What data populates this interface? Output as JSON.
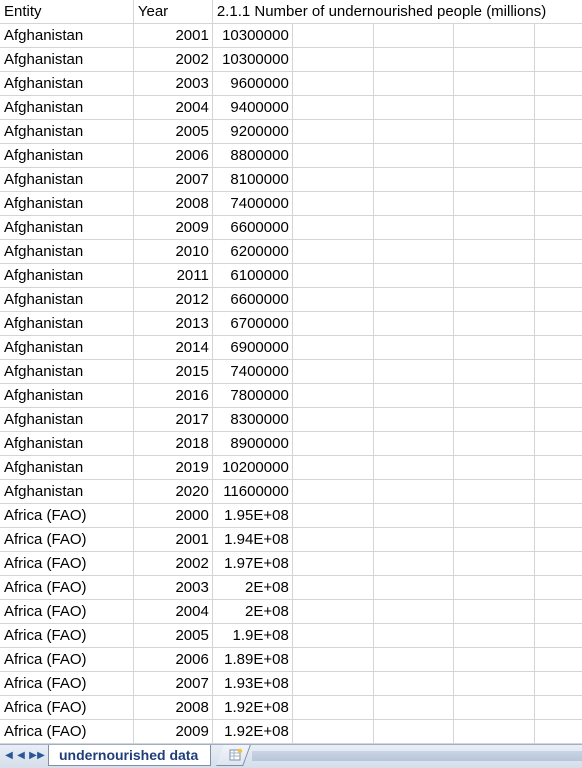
{
  "columns": {
    "entity": "Entity",
    "year": "Year",
    "metric": "2.1.1 Number of undernourished people (millions)"
  },
  "rows": [
    {
      "entity": "Afghanistan",
      "year": "2001",
      "value": "10300000"
    },
    {
      "entity": "Afghanistan",
      "year": "2002",
      "value": "10300000"
    },
    {
      "entity": "Afghanistan",
      "year": "2003",
      "value": "9600000"
    },
    {
      "entity": "Afghanistan",
      "year": "2004",
      "value": "9400000"
    },
    {
      "entity": "Afghanistan",
      "year": "2005",
      "value": "9200000"
    },
    {
      "entity": "Afghanistan",
      "year": "2006",
      "value": "8800000"
    },
    {
      "entity": "Afghanistan",
      "year": "2007",
      "value": "8100000"
    },
    {
      "entity": "Afghanistan",
      "year": "2008",
      "value": "7400000"
    },
    {
      "entity": "Afghanistan",
      "year": "2009",
      "value": "6600000"
    },
    {
      "entity": "Afghanistan",
      "year": "2010",
      "value": "6200000"
    },
    {
      "entity": "Afghanistan",
      "year": "2011",
      "value": "6100000"
    },
    {
      "entity": "Afghanistan",
      "year": "2012",
      "value": "6600000"
    },
    {
      "entity": "Afghanistan",
      "year": "2013",
      "value": "6700000"
    },
    {
      "entity": "Afghanistan",
      "year": "2014",
      "value": "6900000"
    },
    {
      "entity": "Afghanistan",
      "year": "2015",
      "value": "7400000"
    },
    {
      "entity": "Afghanistan",
      "year": "2016",
      "value": "7800000"
    },
    {
      "entity": "Afghanistan",
      "year": "2017",
      "value": "8300000"
    },
    {
      "entity": "Afghanistan",
      "year": "2018",
      "value": "8900000"
    },
    {
      "entity": "Afghanistan",
      "year": "2019",
      "value": "10200000"
    },
    {
      "entity": "Afghanistan",
      "year": "2020",
      "value": "11600000"
    },
    {
      "entity": "Africa (FAO)",
      "year": "2000",
      "value": "1.95E+08"
    },
    {
      "entity": "Africa (FAO)",
      "year": "2001",
      "value": "1.94E+08"
    },
    {
      "entity": "Africa (FAO)",
      "year": "2002",
      "value": "1.97E+08"
    },
    {
      "entity": "Africa (FAO)",
      "year": "2003",
      "value": "2E+08"
    },
    {
      "entity": "Africa (FAO)",
      "year": "2004",
      "value": "2E+08"
    },
    {
      "entity": "Africa (FAO)",
      "year": "2005",
      "value": "1.9E+08"
    },
    {
      "entity": "Africa (FAO)",
      "year": "2006",
      "value": "1.89E+08"
    },
    {
      "entity": "Africa (FAO)",
      "year": "2007",
      "value": "1.93E+08"
    },
    {
      "entity": "Africa (FAO)",
      "year": "2008",
      "value": "1.92E+08"
    },
    {
      "entity": "Africa (FAO)",
      "year": "2009",
      "value": "1.92E+08"
    }
  ],
  "tabs": {
    "active_sheet": "undernourished data",
    "nav_icons": [
      "first-sheet-icon",
      "prev-sheet-icon",
      "next-sheet-icon",
      "last-sheet-icon"
    ],
    "new_sheet_icon": "insert-worksheet-icon"
  },
  "colors": {
    "gridline": "#d4d4d4",
    "tab_text": "#1f3d7a",
    "tabbar_bg": "#d5deea"
  }
}
